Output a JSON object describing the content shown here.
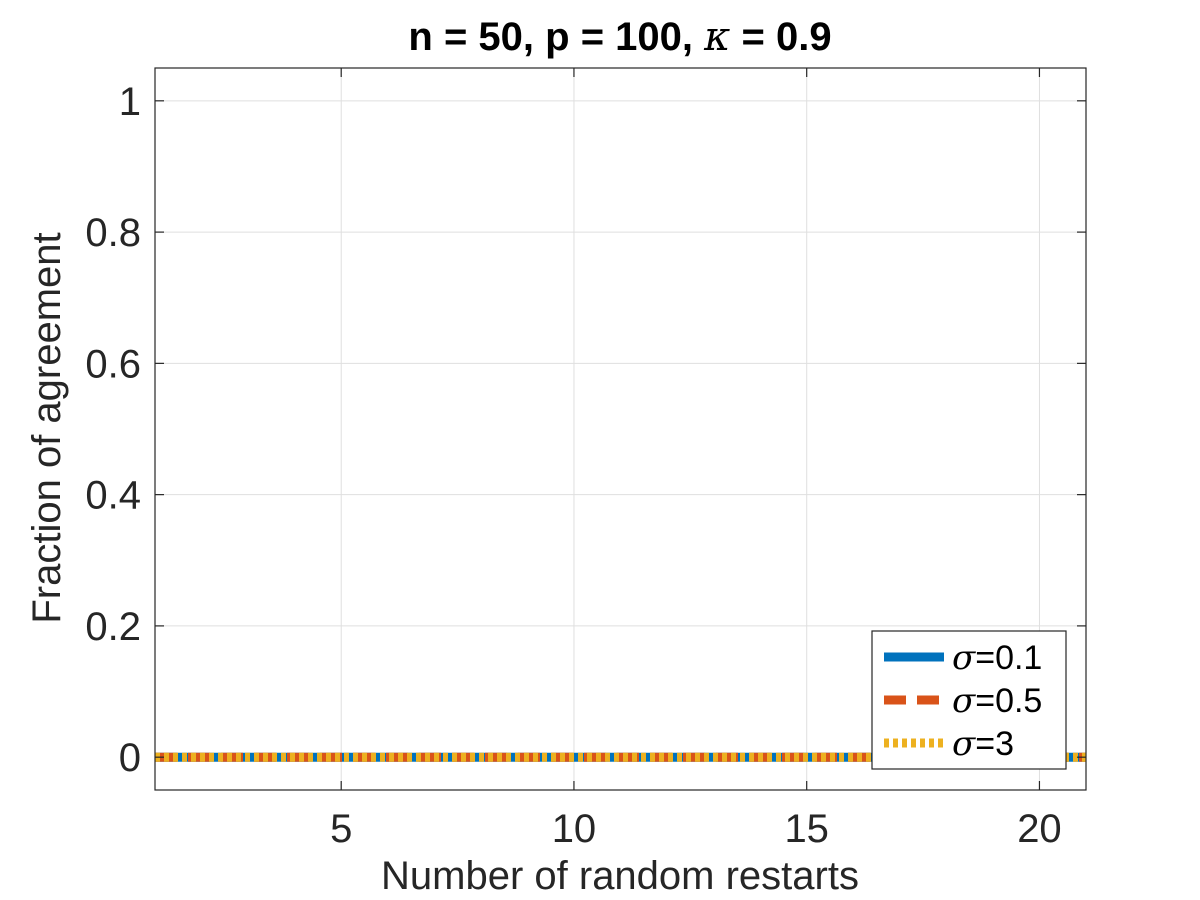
{
  "chart_data": {
    "type": "line",
    "title": {
      "prefix": "n = 50, p = 100, ",
      "symbol": "κ",
      "suffix": " = 0.9"
    },
    "xlabel": "Number of random restarts",
    "ylabel": "Fraction of agreement",
    "xlim": [
      1,
      21
    ],
    "ylim": [
      -0.05,
      1.05
    ],
    "xticks": [
      5,
      10,
      15,
      20
    ],
    "xtick_labels": [
      "5",
      "10",
      "15",
      "20"
    ],
    "yticks": [
      0,
      0.2,
      0.4,
      0.6,
      0.8,
      1
    ],
    "ytick_labels": [
      "0",
      "0.2",
      "0.4",
      "0.6",
      "0.8",
      "1"
    ],
    "grid": true,
    "legend_position": "bottom-right",
    "x": [
      1,
      2,
      3,
      4,
      5,
      6,
      7,
      8,
      9,
      10,
      11,
      12,
      13,
      14,
      15,
      16,
      17,
      18,
      19,
      20,
      21
    ],
    "series": [
      {
        "symbol": "σ",
        "label": "=0.1",
        "color": "#0072BD",
        "style": "solid",
        "values": [
          0,
          0,
          0,
          0,
          0,
          0,
          0,
          0,
          0,
          0,
          0,
          0,
          0,
          0,
          0,
          0,
          0,
          0,
          0,
          0,
          0
        ]
      },
      {
        "symbol": "σ",
        "label": "=0.5",
        "color": "#D95319",
        "style": "dashed",
        "values": [
          0,
          0,
          0,
          0,
          0,
          0,
          0,
          0,
          0,
          0,
          0,
          0,
          0,
          0,
          0,
          0,
          0,
          0,
          0,
          0,
          0
        ]
      },
      {
        "symbol": "σ",
        "label": "=3",
        "color": "#EDB120",
        "style": "dotted",
        "values": [
          0,
          0,
          0,
          0,
          0,
          0,
          0,
          0,
          0,
          0,
          0,
          0,
          0,
          0,
          0,
          0,
          0,
          0,
          0,
          0,
          0
        ]
      }
    ]
  }
}
